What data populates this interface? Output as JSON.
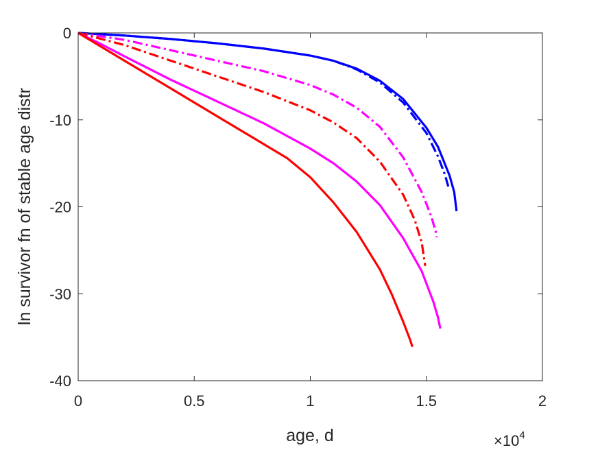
{
  "chart_data": {
    "type": "line",
    "title": "",
    "xlabel": "age, d",
    "ylabel": "ln survivor fn of stable age distr",
    "xlim": [
      0,
      20000
    ],
    "ylim": [
      -40,
      0
    ],
    "x_exponent_label": {
      "base": "×10",
      "exp": "4"
    },
    "xticks": [
      {
        "value": 0,
        "label": "0"
      },
      {
        "value": 5000,
        "label": "0.5"
      },
      {
        "value": 10000,
        "label": "1"
      },
      {
        "value": 15000,
        "label": "1.5"
      },
      {
        "value": 20000,
        "label": "2"
      }
    ],
    "yticks": [
      {
        "value": 0,
        "label": "0"
      },
      {
        "value": -10,
        "label": "-10"
      },
      {
        "value": -20,
        "label": "-20"
      },
      {
        "value": -30,
        "label": "-30"
      },
      {
        "value": -40,
        "label": "-40"
      }
    ],
    "grid": false,
    "legend": "none",
    "series": [
      {
        "color": "#0000ff",
        "style": "solid",
        "x": [
          0,
          2000,
          4000,
          6000,
          8000,
          10000,
          11000,
          12000,
          13000,
          14000,
          15000,
          15500,
          16000,
          16200,
          16300
        ],
        "y": [
          0,
          -0.3,
          -0.7,
          -1.2,
          -1.8,
          -2.6,
          -3.2,
          -4.1,
          -5.5,
          -7.6,
          -10.9,
          -13.1,
          -16.4,
          -18.3,
          -20.5
        ]
      },
      {
        "color": "#0000ff",
        "style": "dashdot",
        "x": [
          0,
          2000,
          4000,
          6000,
          8000,
          10000,
          11000,
          12000,
          13000,
          14000,
          15000,
          15500,
          15800,
          15950
        ],
        "y": [
          0,
          -0.3,
          -0.7,
          -1.2,
          -1.8,
          -2.6,
          -3.2,
          -4.2,
          -5.7,
          -8.0,
          -11.5,
          -14.2,
          -16.3,
          -17.7
        ]
      },
      {
        "color": "#ff00ff",
        "style": "dashdot",
        "x": [
          0,
          2000,
          4000,
          6000,
          8000,
          10000,
          11000,
          12000,
          13000,
          14000,
          14800,
          15200,
          15400,
          15450
        ],
        "y": [
          0,
          -0.8,
          -2.0,
          -3.2,
          -4.4,
          -6.0,
          -7.1,
          -8.6,
          -10.8,
          -14.3,
          -18.3,
          -21.0,
          -22.8,
          -23.5
        ]
      },
      {
        "color": "#ff0000",
        "style": "dashdot",
        "x": [
          0,
          2000,
          4000,
          6000,
          8000,
          10000,
          11000,
          12000,
          13000,
          14000,
          14500,
          14800,
          14950
        ],
        "y": [
          0,
          -1.4,
          -3.2,
          -5.0,
          -6.8,
          -8.9,
          -10.3,
          -12.1,
          -14.8,
          -18.6,
          -21.5,
          -24.1,
          -26.8
        ]
      },
      {
        "color": "#ff00ff",
        "style": "solid",
        "x": [
          0,
          1000,
          2000,
          4000,
          6000,
          8000,
          10000,
          11000,
          12000,
          13000,
          14000,
          14800,
          15300,
          15500,
          15600
        ],
        "y": [
          0,
          -1.3,
          -2.7,
          -5.4,
          -7.9,
          -10.4,
          -13.3,
          -15.0,
          -17.1,
          -19.8,
          -23.6,
          -27.4,
          -30.9,
          -32.7,
          -34.0
        ]
      },
      {
        "color": "#ff0000",
        "style": "solid",
        "x": [
          0,
          2000,
          4000,
          6000,
          8000,
          9000,
          10000,
          11000,
          12000,
          13000,
          13500,
          14000,
          14300,
          14400
        ],
        "y": [
          0,
          -3.2,
          -6.4,
          -9.6,
          -12.8,
          -14.4,
          -16.6,
          -19.5,
          -22.9,
          -27.2,
          -30.0,
          -33.2,
          -35.3,
          -36.1
        ]
      }
    ]
  }
}
